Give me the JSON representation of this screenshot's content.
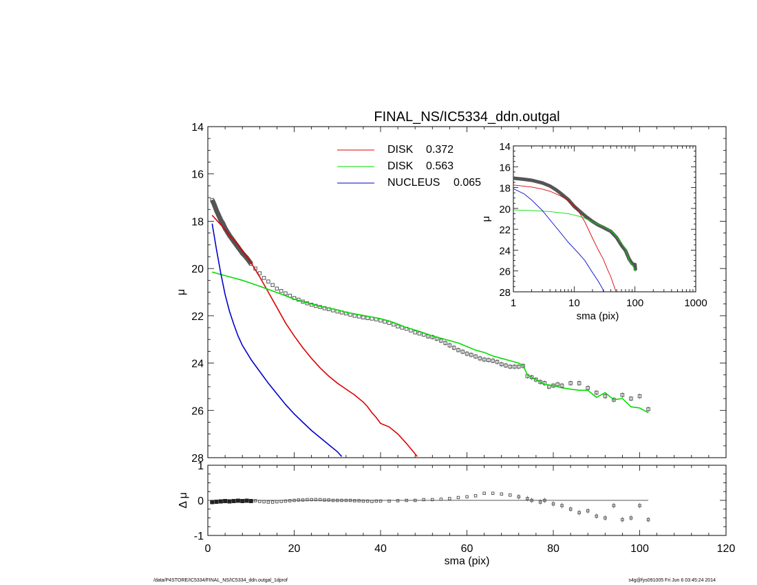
{
  "chart_data": [
    {
      "type": "scatter",
      "panel": "main",
      "title": "FINAL_NS/IC5334_ddn.outgal",
      "xlabel": "",
      "ylabel": "μ",
      "xlim": [
        0,
        120
      ],
      "ylim": [
        28,
        14
      ],
      "y_inverted": true,
      "y_ticks": [
        14,
        16,
        18,
        20,
        22,
        24,
        26,
        28
      ],
      "y_tick_labels": [
        "14",
        "16",
        "18",
        "20",
        "22",
        "24",
        "26",
        "28"
      ],
      "legend_position": "top-center",
      "legend": [
        {
          "name": "DISK",
          "value": "0.372",
          "color": "#dd0000"
        },
        {
          "name": "DISK",
          "value": "0.563",
          "color": "#00dd00"
        },
        {
          "name": "NUCLEUS",
          "value": "0.065",
          "color": "#0000cc"
        }
      ],
      "observed": {
        "color": "#555555",
        "marker": "square",
        "x": [
          1,
          1.5,
          2,
          2.5,
          3,
          3.5,
          4,
          5,
          6,
          7,
          8,
          9,
          10,
          11,
          12,
          13,
          14,
          15,
          16,
          17,
          18,
          19,
          20,
          21,
          22,
          23,
          24,
          25,
          26,
          27,
          28,
          29,
          30,
          31,
          32,
          33,
          34,
          35,
          36,
          37,
          38,
          39,
          40,
          41,
          42,
          43,
          44,
          45,
          46,
          47,
          48,
          49,
          50,
          51,
          52,
          53,
          54,
          55,
          56,
          57,
          58,
          59,
          60,
          61,
          62,
          63,
          64,
          65,
          66,
          67,
          68,
          69,
          70,
          71,
          72,
          73,
          74,
          75,
          76,
          77,
          78,
          79,
          80,
          81,
          82,
          84,
          86,
          88,
          90,
          92,
          94,
          96,
          98,
          100,
          102
        ],
        "y": [
          17.1,
          17.3,
          17.55,
          17.75,
          17.95,
          18.1,
          18.3,
          18.6,
          18.85,
          19.1,
          19.35,
          19.55,
          19.8,
          20.0,
          20.2,
          20.4,
          20.55,
          20.7,
          20.85,
          20.95,
          21.05,
          21.15,
          21.25,
          21.32,
          21.4,
          21.47,
          21.53,
          21.58,
          21.63,
          21.68,
          21.72,
          21.77,
          21.82,
          21.86,
          21.9,
          21.95,
          22.0,
          22.03,
          22.07,
          22.1,
          22.12,
          22.15,
          22.2,
          22.25,
          22.3,
          22.37,
          22.45,
          22.5,
          22.55,
          22.62,
          22.7,
          22.75,
          22.8,
          22.87,
          22.9,
          22.97,
          23.05,
          23.15,
          23.25,
          23.35,
          23.45,
          23.52,
          23.6,
          23.65,
          23.72,
          23.8,
          23.85,
          23.87,
          23.9,
          23.95,
          24.05,
          24.1,
          24.15,
          24.15,
          24.15,
          24.12,
          24.55,
          24.6,
          24.7,
          24.8,
          24.85,
          25.0,
          24.95,
          24.9,
          24.95,
          24.85,
          24.85,
          25.05,
          25.25,
          25.4,
          25.55,
          25.35,
          25.5,
          25.4,
          25.95
        ]
      },
      "series": [
        {
          "name": "DISK 0.372",
          "color": "#dd0000",
          "x": [
            1,
            2,
            3,
            4,
            5,
            6,
            7,
            8,
            9,
            10,
            11,
            12,
            14,
            16,
            18,
            20,
            22,
            24,
            26,
            28,
            30,
            32,
            34,
            36,
            37,
            38,
            39,
            40,
            42,
            44,
            46,
            48.5
          ],
          "y": [
            17.75,
            17.95,
            18.15,
            18.35,
            18.6,
            18.8,
            19.0,
            19.25,
            19.5,
            19.75,
            20.05,
            20.35,
            21.0,
            21.65,
            22.3,
            22.85,
            23.35,
            23.8,
            24.2,
            24.55,
            24.85,
            25.1,
            25.35,
            25.65,
            25.85,
            26.1,
            26.3,
            26.55,
            26.7,
            27.0,
            27.4,
            27.95
          ]
        },
        {
          "name": "DISK 0.563",
          "color": "#00dd00",
          "x": [
            1,
            4,
            8,
            12,
            15,
            18,
            20,
            22,
            24,
            26,
            28,
            30,
            32,
            35,
            38,
            40,
            42,
            44,
            46,
            48,
            50,
            52,
            54,
            56,
            58,
            60,
            62,
            64,
            66,
            68,
            70,
            72,
            73,
            74,
            76,
            78,
            80,
            82,
            84,
            86,
            88,
            90,
            92,
            94,
            96,
            98,
            100,
            102
          ],
          "y": [
            20.15,
            20.3,
            20.5,
            20.75,
            20.95,
            21.15,
            21.3,
            21.4,
            21.5,
            21.6,
            21.67,
            21.75,
            21.85,
            21.95,
            22.05,
            22.12,
            22.22,
            22.35,
            22.5,
            22.6,
            22.72,
            22.85,
            22.95,
            23.05,
            23.15,
            23.3,
            23.45,
            23.55,
            23.7,
            23.8,
            23.9,
            24.0,
            24.1,
            24.5,
            24.7,
            24.9,
            24.95,
            25.05,
            25.1,
            25.15,
            25.15,
            25.45,
            25.25,
            25.55,
            25.5,
            25.85,
            25.9,
            26.1
          ]
        },
        {
          "name": "NUCLEUS 0.065",
          "color": "#0000cc",
          "x": [
            1,
            2,
            3,
            4,
            5,
            6,
            7,
            8,
            9,
            10,
            11,
            12,
            14,
            16,
            18,
            20,
            22,
            24,
            26,
            28,
            30,
            31
          ],
          "y": [
            18.1,
            19.2,
            20.2,
            21.1,
            21.8,
            22.35,
            22.85,
            23.25,
            23.55,
            23.85,
            24.1,
            24.35,
            24.85,
            25.3,
            25.75,
            26.15,
            26.5,
            26.85,
            27.15,
            27.45,
            27.75,
            27.95
          ]
        }
      ]
    },
    {
      "type": "scatter",
      "panel": "residual",
      "xlabel": "sma (pix)",
      "ylabel": "Δ μ",
      "xlim": [
        0,
        120
      ],
      "ylim": [
        -1,
        1
      ],
      "x_ticks": [
        0,
        20,
        40,
        60,
        80,
        100,
        120
      ],
      "x_tick_labels": [
        "0",
        "20",
        "40",
        "60",
        "80",
        "100",
        "120"
      ],
      "y_ticks": [
        -1,
        0,
        1
      ],
      "y_tick_labels": [
        "-1",
        "0",
        "1"
      ],
      "zero_line": {
        "x": [
          0,
          102
        ],
        "y": 0
      },
      "residuals": {
        "x": [
          1,
          2,
          3,
          4,
          5,
          6,
          7,
          8,
          9,
          10,
          11,
          12,
          13,
          14,
          15,
          16,
          17,
          18,
          19,
          20,
          21,
          22,
          23,
          24,
          25,
          26,
          27,
          28,
          29,
          30,
          31,
          32,
          33,
          34,
          35,
          36,
          37,
          38,
          39,
          40,
          42,
          44,
          46,
          48,
          50,
          52,
          54,
          56,
          58,
          60,
          62,
          64,
          66,
          68,
          70,
          72,
          74,
          75,
          77,
          78,
          80,
          82,
          84,
          86,
          88,
          90,
          92,
          94,
          96,
          98,
          100,
          102
        ],
        "y": [
          -0.05,
          -0.04,
          -0.03,
          -0.02,
          -0.03,
          -0.02,
          -0.01,
          -0.02,
          -0.01,
          -0.02,
          -0.01,
          -0.03,
          -0.04,
          -0.05,
          -0.05,
          -0.04,
          -0.03,
          -0.02,
          -0.01,
          0.0,
          0.01,
          0.01,
          0.02,
          0.02,
          0.02,
          0.02,
          0.01,
          0.01,
          0.0,
          0.0,
          0.0,
          0.0,
          0.0,
          -0.01,
          -0.01,
          -0.02,
          -0.02,
          -0.03,
          -0.02,
          -0.02,
          -0.02,
          -0.01,
          0.0,
          0.0,
          0.02,
          0.02,
          0.03,
          0.05,
          0.08,
          0.1,
          0.13,
          0.2,
          0.2,
          0.18,
          0.15,
          0.1,
          0.05,
          0.0,
          -0.05,
          0.0,
          -0.1,
          -0.15,
          -0.25,
          -0.35,
          -0.3,
          -0.45,
          -0.5,
          -0.15,
          -0.55,
          -0.5,
          -0.15,
          -0.55
        ]
      }
    },
    {
      "type": "line",
      "panel": "inset",
      "xlabel": "sma (pix)",
      "ylabel": "μ",
      "x_scale": "log",
      "xlim": [
        1,
        1000
      ],
      "ylim": [
        28,
        14
      ],
      "y_inverted": true,
      "x_ticks": [
        1,
        10,
        100,
        1000
      ],
      "x_tick_labels": [
        "1",
        "10",
        "100",
        "1000"
      ],
      "y_ticks": [
        14,
        16,
        18,
        20,
        22,
        24,
        26,
        28
      ],
      "y_tick_labels": [
        "14",
        "16",
        "18",
        "20",
        "22",
        "24",
        "26",
        "28"
      ],
      "observed": {
        "x": [
          1,
          1.5,
          2,
          3,
          4,
          5,
          6,
          8,
          10,
          12,
          15,
          20,
          25,
          30,
          40,
          50,
          60,
          70,
          80,
          90,
          100,
          102
        ],
        "y": [
          17.1,
          17.2,
          17.3,
          17.55,
          17.85,
          18.2,
          18.55,
          19.15,
          19.8,
          20.2,
          20.7,
          21.25,
          21.6,
          21.82,
          22.2,
          22.8,
          23.55,
          24.05,
          24.85,
          25.3,
          25.4,
          25.95
        ]
      },
      "series": [
        {
          "name": "DISK 0.372",
          "color": "#dd0000",
          "x": [
            1,
            2,
            3,
            4,
            6,
            8,
            10,
            12,
            15,
            20,
            25,
            30,
            35,
            40,
            48.5
          ],
          "y": [
            17.75,
            17.95,
            18.15,
            18.35,
            18.8,
            19.25,
            19.75,
            20.35,
            21.3,
            22.85,
            24.0,
            24.85,
            25.8,
            26.55,
            27.95
          ]
        },
        {
          "name": "DISK 0.563",
          "color": "#00dd00",
          "x": [
            1,
            2,
            4,
            8,
            12,
            15,
            20,
            30,
            40,
            50,
            60,
            70,
            80,
            90,
            100,
            102
          ],
          "y": [
            20.15,
            20.2,
            20.3,
            20.5,
            20.75,
            20.95,
            21.3,
            21.75,
            22.12,
            22.72,
            23.3,
            23.9,
            24.95,
            25.45,
            25.9,
            26.1
          ]
        },
        {
          "name": "NUCLEUS 0.065",
          "color": "#0000cc",
          "x": [
            1,
            1.5,
            2,
            3,
            4,
            6,
            8,
            10,
            12,
            15,
            20,
            25,
            31
          ],
          "y": [
            18.1,
            18.6,
            19.2,
            20.2,
            21.1,
            22.35,
            23.25,
            23.85,
            24.35,
            25.0,
            26.15,
            27.0,
            27.95
          ]
        }
      ]
    }
  ],
  "footer": {
    "left": "/data/P4STORE/IC5334/FINAL_NS/IC5334_ddn.outgal_1dprof",
    "right": "s4g@fys091005  Fri Jun  6 03:45:24 2014"
  }
}
